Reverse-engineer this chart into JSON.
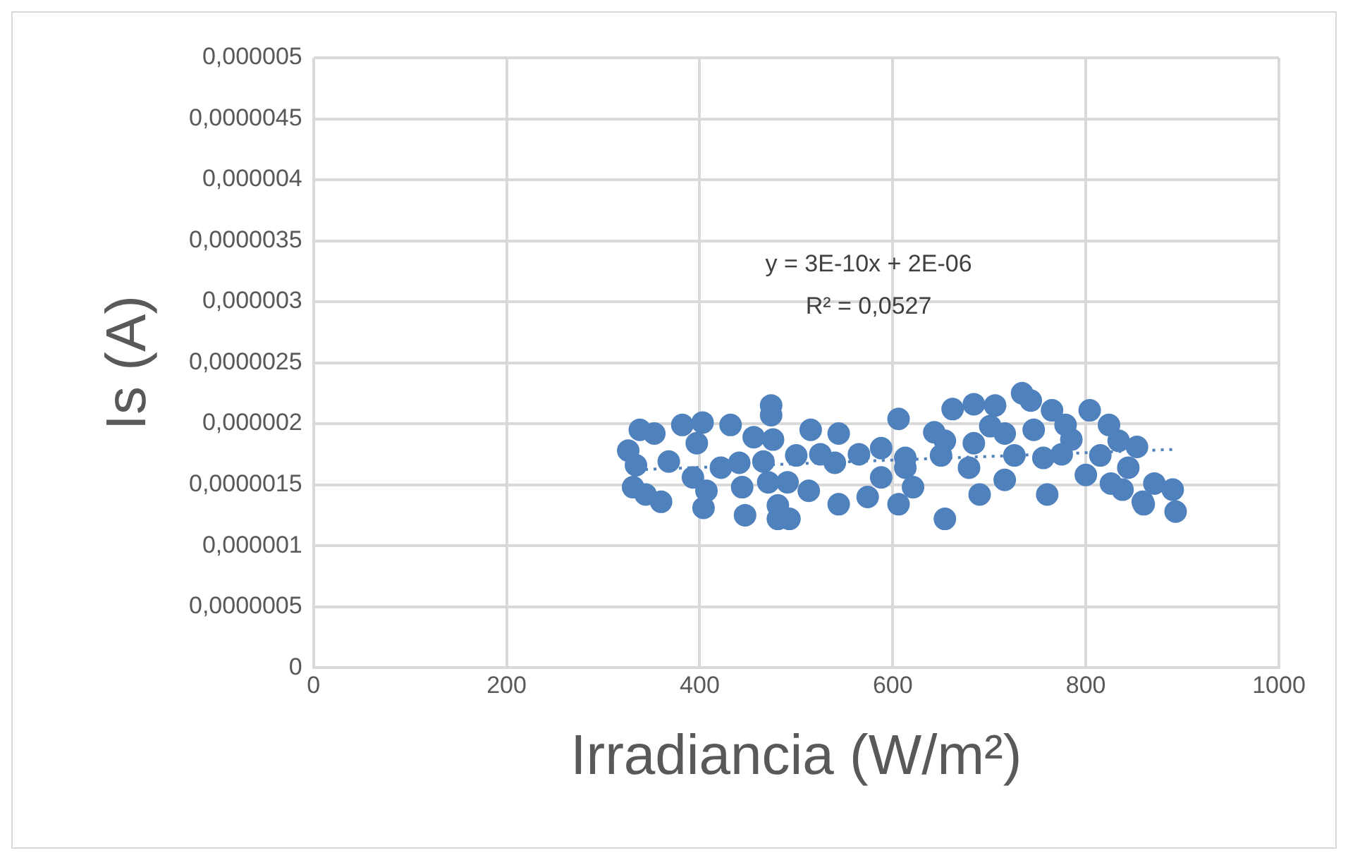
{
  "chart_data": {
    "type": "scatter",
    "xlabel": "Irradiancia (W/m²)",
    "ylabel": "Is (A)",
    "annotations": [
      "y = 3E-10x + 2E-06",
      "R² = 0,0527"
    ],
    "xlim": [
      0,
      1000
    ],
    "xticks": [
      0,
      200,
      400,
      600,
      800,
      1000
    ],
    "ylim": [
      0,
      5e-06
    ],
    "yticks": [
      {
        "value": 0,
        "label": "0"
      },
      {
        "value": 5e-07,
        "label": "0,0000005"
      },
      {
        "value": 1e-06,
        "label": "0,000001"
      },
      {
        "value": 1.5e-06,
        "label": "0,0000015"
      },
      {
        "value": 2e-06,
        "label": "0,000002"
      },
      {
        "value": 2.5e-06,
        "label": "0,0000025"
      },
      {
        "value": 3e-06,
        "label": "0,000003"
      },
      {
        "value": 3.5e-06,
        "label": "0,0000035"
      },
      {
        "value": 4e-06,
        "label": "0,000004"
      },
      {
        "value": 4.5e-06,
        "label": "0,0000045"
      },
      {
        "value": 5e-06,
        "label": "0,000005"
      }
    ],
    "grid": true,
    "legend": false,
    "marker": "circle",
    "series": [
      {
        "type": "scatter",
        "color": "#4f81bd",
        "x": [
          338,
          353,
          326,
          334,
          331,
          344,
          360,
          368,
          382,
          403,
          397,
          393,
          407,
          404,
          422,
          432,
          441,
          444,
          447,
          456,
          474,
          474,
          476,
          466,
          471,
          481,
          493,
          481,
          500,
          491,
          515,
          525,
          513,
          544,
          540,
          544,
          565,
          574,
          588,
          588,
          606,
          606,
          613,
          613,
          621,
          643,
          654,
          650,
          662,
          679,
          690,
          654,
          684,
          706,
          701,
          684,
          716,
          716,
          734,
          743,
          726,
          746,
          765,
          756,
          760,
          779,
          775,
          785,
          804,
          800,
          815,
          824,
          826,
          834,
          844,
          853,
          859,
          871,
          890,
          893,
          860,
          838
        ],
        "values": [
          1.95e-06,
          1.92e-06,
          1.78e-06,
          1.66e-06,
          1.48e-06,
          1.42e-06,
          1.36e-06,
          1.69e-06,
          1.99e-06,
          2.01e-06,
          1.84e-06,
          1.56e-06,
          1.45e-06,
          1.31e-06,
          1.64e-06,
          1.99e-06,
          1.68e-06,
          1.48e-06,
          1.25e-06,
          1.89e-06,
          2.15e-06,
          2.07e-06,
          1.87e-06,
          1.69e-06,
          1.52e-06,
          1.33e-06,
          1.22e-06,
          1.22e-06,
          1.74e-06,
          1.52e-06,
          1.95e-06,
          1.75e-06,
          1.45e-06,
          1.92e-06,
          1.68e-06,
          1.34e-06,
          1.75e-06,
          1.4e-06,
          1.8e-06,
          1.56e-06,
          2.04e-06,
          1.34e-06,
          1.64e-06,
          1.72e-06,
          1.48e-06,
          1.93e-06,
          1.86e-06,
          1.74e-06,
          2.12e-06,
          1.64e-06,
          1.42e-06,
          1.22e-06,
          2.16e-06,
          2.15e-06,
          1.98e-06,
          1.84e-06,
          1.92e-06,
          1.54e-06,
          2.25e-06,
          2.19e-06,
          1.74e-06,
          1.95e-06,
          2.11e-06,
          1.72e-06,
          1.42e-06,
          1.99e-06,
          1.75e-06,
          1.87e-06,
          2.11e-06,
          1.58e-06,
          1.74e-06,
          1.99e-06,
          1.51e-06,
          1.86e-06,
          1.64e-06,
          1.81e-06,
          1.36e-06,
          1.51e-06,
          1.46e-06,
          1.28e-06,
          1.34e-06,
          1.46e-06
        ]
      },
      {
        "type": "line",
        "color": "#4f81bd",
        "x": [
          326,
          893
        ],
        "values": [
          1.62e-06,
          1.79e-06
        ],
        "line_style": "dotted",
        "marker": "none"
      }
    ]
  }
}
